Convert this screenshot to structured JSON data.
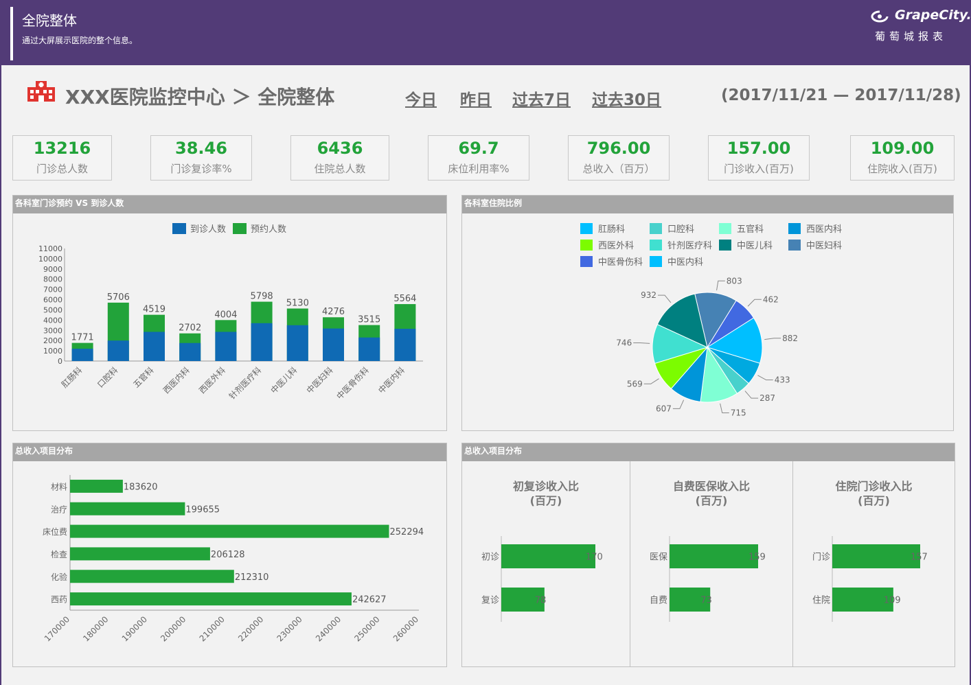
{
  "header": {
    "title": "全院整体",
    "subtitle": "通过大屏展示医院的整个信息。",
    "logo_text": "GrapeCity.",
    "logo_sub": "葡萄城报表"
  },
  "titlebar": {
    "center_name": "XXX医院监控中心 ＞ 全院整体",
    "tabs": [
      "今日",
      "昨日",
      "过去7日",
      "过去30日"
    ],
    "date_range": "(2017/11/21 — 2017/11/28)"
  },
  "kpis": [
    {
      "value": "13216",
      "label": "门诊总人数"
    },
    {
      "value": "38.46",
      "label": "门诊复诊率%"
    },
    {
      "value": "6436",
      "label": "住院总人数"
    },
    {
      "value": "69.7",
      "label": "床位利用率%"
    },
    {
      "value": "796.00",
      "label": "总收入（百万）"
    },
    {
      "value": "157.00",
      "label": "门诊收入(百万)"
    },
    {
      "value": "109.00",
      "label": "住院收入(百万)"
    }
  ],
  "panels": {
    "dept_title": "各科室门诊预约 VS 到诊人数",
    "ratio_title": "各科室住院比例",
    "income_title": "总收入项目分布",
    "income2_title": "总收入项目分布"
  },
  "colors": {
    "primary_bar": "#0f6ab4",
    "secondary_bar": "#22a33a",
    "header_bg": "#523b77"
  },
  "chart_data": [
    {
      "type": "bar",
      "stacked": true,
      "categories": [
        "肛肠科",
        "口腔科",
        "五官科",
        "西医内科",
        "西医外科",
        "针剂医疗科",
        "中医儿科",
        "中医妇科",
        "中医骨伤科",
        "中医内科"
      ],
      "series": [
        {
          "name": "到诊人数",
          "values": [
            1200,
            2000,
            2850,
            1760,
            2850,
            3700,
            3500,
            3180,
            2300,
            3150
          ]
        },
        {
          "name": "预约人数",
          "values": [
            1771,
            5706,
            4519,
            2702,
            4004,
            5798,
            5130,
            4276,
            3515,
            5564
          ]
        }
      ],
      "labels": [
        "1771",
        "5706",
        "4519",
        "2702",
        "4004",
        "5798",
        "5130",
        "4276",
        "3515",
        "5564"
      ],
      "ylim": [
        0,
        11000
      ],
      "yticks": [
        "0",
        "1000",
        "2000",
        "3000",
        "4000",
        "5000",
        "6000",
        "7000",
        "8000",
        "9000",
        "10000",
        "11000"
      ],
      "legend": "top-center"
    },
    {
      "type": "pie",
      "legend": [
        "肛肠科",
        "口腔科",
        "五官科",
        "西医内科",
        "西医外科",
        "针剂医疗科",
        "中医儿科",
        "中医妇科",
        "中医骨伤科",
        "中医内科"
      ],
      "slices": [
        {
          "value": 803,
          "color": "#4682b4"
        },
        {
          "value": 462,
          "color": "#4169e1"
        },
        {
          "value": 882,
          "color": "#00bfff"
        },
        {
          "value": 433,
          "color": "#00a9e0"
        },
        {
          "value": 287,
          "color": "#48d1cc"
        },
        {
          "value": 715,
          "color": "#7fffd4"
        },
        {
          "value": 607,
          "color": "#0095d9"
        },
        {
          "value": 569,
          "color": "#7cfc00"
        },
        {
          "value": 746,
          "color": "#40e0d0"
        },
        {
          "value": 932,
          "color": "#008080"
        }
      ],
      "legend_colors": [
        "#00bfff",
        "#48d1cc",
        "#7fffd4",
        "#0095d9",
        "#7cfc00",
        "#40e0d0",
        "#008080",
        "#4682b4",
        "#4169e1",
        "#00bfff"
      ]
    },
    {
      "type": "bar",
      "orientation": "horizontal",
      "categories": [
        "材料",
        "治疗",
        "床位费",
        "检查",
        "化验",
        "西药"
      ],
      "values": [
        183620,
        199655,
        252294,
        206128,
        212310,
        242627
      ],
      "labels": [
        "183620",
        "199655",
        "252294",
        "206128",
        "212310",
        "242627"
      ],
      "xlim": [
        170000,
        260000
      ],
      "xticks": [
        "170000",
        "180000",
        "190000",
        "200000",
        "210000",
        "220000",
        "230000",
        "240000",
        "250000",
        "260000"
      ]
    },
    {
      "type": "bar",
      "orientation": "horizontal",
      "title": "初复诊收入比\n(百万)",
      "categories": [
        "初诊",
        "复诊"
      ],
      "values": [
        170,
        78
      ],
      "labels": [
        "170",
        "78"
      ]
    },
    {
      "type": "bar",
      "orientation": "horizontal",
      "title": "自费医保收入比\n(百万)",
      "categories": [
        "医保",
        "自费"
      ],
      "values": [
        159,
        73
      ],
      "labels": [
        "159",
        "73"
      ]
    },
    {
      "type": "bar",
      "orientation": "horizontal",
      "title": "住院门诊收入比\n(百万)",
      "categories": [
        "门诊",
        "住院"
      ],
      "values": [
        157,
        109
      ],
      "labels": [
        "157",
        "109"
      ]
    }
  ]
}
